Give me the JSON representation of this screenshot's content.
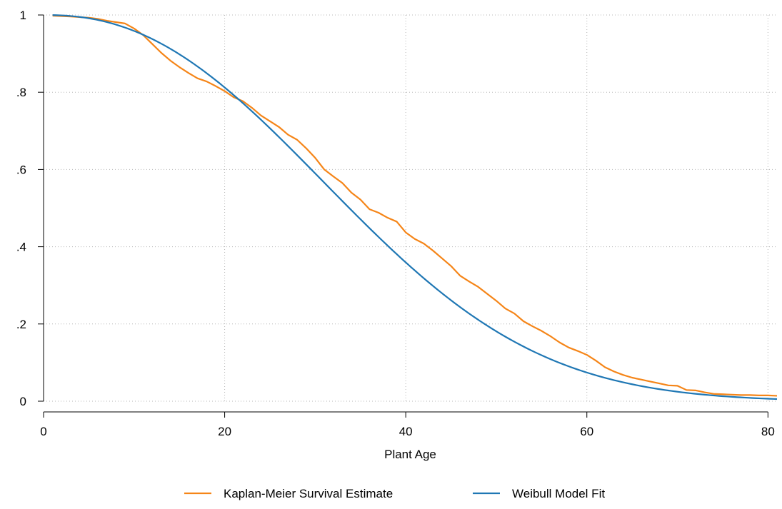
{
  "chart_data": {
    "type": "line",
    "title": "",
    "xlabel": "Plant Age",
    "ylabel": "",
    "xlim": [
      0,
      81
    ],
    "ylim": [
      0,
      1
    ],
    "x_ticks": [
      0,
      20,
      40,
      60,
      80
    ],
    "x_tick_labels": [
      "0",
      "20",
      "40",
      "60",
      "80"
    ],
    "y_ticks": [
      0,
      0.2,
      0.4,
      0.6,
      0.8,
      1
    ],
    "y_tick_labels": [
      "0",
      ".2",
      ".4",
      ".6",
      ".8",
      "1"
    ],
    "grid": true,
    "legend_position": "bottom",
    "series": [
      {
        "name": "Kaplan-Meier Survival Estimate",
        "color": "#f58518",
        "x": [
          1,
          3,
          5,
          6,
          7,
          9,
          10,
          11,
          12,
          13,
          14,
          15,
          16,
          17,
          18,
          19,
          20,
          21,
          22,
          23,
          24,
          25,
          26,
          27,
          28,
          29,
          30,
          31,
          32,
          33,
          34,
          35,
          36,
          37,
          38,
          39,
          40,
          41,
          42,
          43,
          44,
          45,
          46,
          47,
          48,
          49,
          50,
          51,
          52,
          53,
          54,
          55,
          56,
          57,
          58,
          59,
          60,
          61,
          62,
          63,
          64,
          65,
          66,
          67,
          68,
          69,
          70,
          71,
          72,
          73,
          74,
          75,
          76,
          77,
          78,
          79,
          80,
          81
        ],
        "y": [
          0.998,
          0.996,
          0.993,
          0.99,
          0.985,
          0.978,
          0.965,
          0.948,
          0.925,
          0.902,
          0.882,
          0.865,
          0.85,
          0.836,
          0.828,
          0.816,
          0.803,
          0.787,
          0.777,
          0.76,
          0.74,
          0.725,
          0.71,
          0.69,
          0.677,
          0.655,
          0.63,
          0.6,
          0.582,
          0.565,
          0.54,
          0.522,
          0.497,
          0.488,
          0.475,
          0.465,
          0.437,
          0.42,
          0.408,
          0.39,
          0.37,
          0.35,
          0.325,
          0.31,
          0.296,
          0.278,
          0.26,
          0.24,
          0.227,
          0.207,
          0.194,
          0.182,
          0.168,
          0.152,
          0.139,
          0.13,
          0.12,
          0.105,
          0.088,
          0.077,
          0.068,
          0.061,
          0.056,
          0.051,
          0.046,
          0.041,
          0.04,
          0.029,
          0.028,
          0.023,
          0.019,
          0.018,
          0.017,
          0.016,
          0.016,
          0.015,
          0.015,
          0.014
        ]
      },
      {
        "name": "Weibull Model Fit",
        "color": "#1f77b4",
        "model": {
          "scale": 39.6,
          "shape": 2.3
        },
        "x": [
          1,
          81
        ]
      }
    ]
  }
}
